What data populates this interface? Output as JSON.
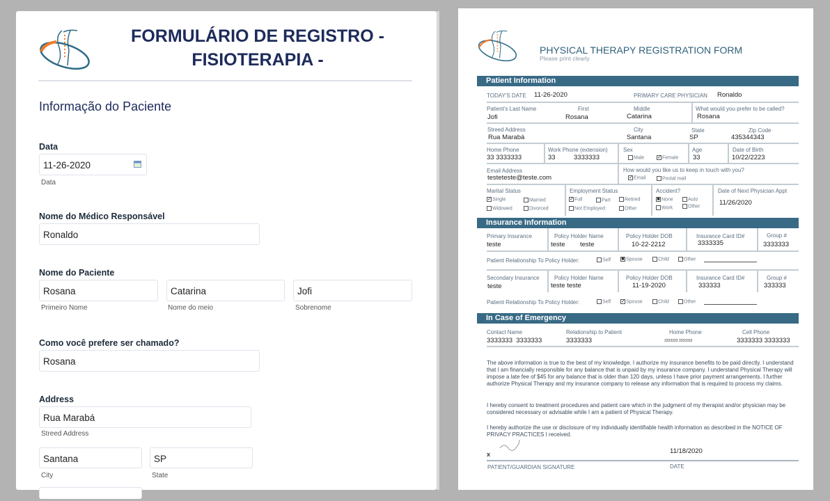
{
  "web_form": {
    "title_line1": "FORMULÁRIO DE REGISTRO -",
    "title_line2": "FISIOTERAPIA -",
    "section": "Informação do Paciente",
    "date": {
      "label": "Data",
      "value": "11-26-2020",
      "sublabel": "Data"
    },
    "physician": {
      "label": "Nome do Médico Responsável",
      "value": "Ronaldo"
    },
    "patient_name": {
      "label": "Nome do Paciente",
      "first": "Rosana",
      "first_sub": "Primeiro Nome",
      "middle": "Catarina",
      "middle_sub": "Nome do meio",
      "last": "Jofi",
      "last_sub": "Sobrenome"
    },
    "preferred": {
      "label": "Como você prefere ser chamado?",
      "value": "Rosana"
    },
    "address": {
      "label": "Address",
      "street": "Rua Marabá",
      "street_sub": "Streed Address",
      "city": "Santana",
      "city_sub": "City",
      "state": "SP",
      "state_sub": "State"
    }
  },
  "pdf": {
    "title": "PHYSICAL THERAPY REGISTRATION FORM",
    "subtitle": "Please print clearly",
    "accent": "#386a85",
    "patient": {
      "header": "Patient Information",
      "todays_date_label": "TODAY'S DATE",
      "todays_date": "11-26-2020",
      "pcp_label": "PRIMARY CARE PHYSICIAN",
      "pcp": "Ronaldo",
      "last_label": "Patient's Last Name",
      "last": "Jofi",
      "first_label": "First",
      "first": "Rosana",
      "middle_label": "Middle",
      "middle": "Catarina",
      "called_label": "What would you prefer to be called?",
      "called": "Rosana",
      "street_label": "Streed Address",
      "street": "Rua Marabá",
      "city_label": "City",
      "city": "Santana",
      "state_label": "State",
      "state": "SP",
      "zip_label": "Zip Code",
      "zip": "435344343",
      "home_label": "Home Phone",
      "home": "33 3333333",
      "work_label": "Work Phone (extension)",
      "work_ext": "33",
      "work": "3333333",
      "sex_label": "Sex",
      "male": "Male",
      "female": "Female",
      "age_label": "Age",
      "age": "33",
      "dob_label": "Date of Birth",
      "dob": "10/22/2223",
      "email_label": "Email Address",
      "email": "testeteste@teste.com",
      "contact_label": "How would you like us to keep in touch with you?",
      "contact_email": "Email",
      "contact_postal": "Postal mail",
      "marital_label": "Marital Status",
      "single": "Single",
      "married": "Married",
      "widowed": "Widowed",
      "divorced": "Divorced",
      "employment_label": "Employment Status",
      "full": "Full",
      "part": "Part",
      "retired": "Retired",
      "not_employed": "Not Employed",
      "emp_other": "Other",
      "accident_label": "Accident?",
      "none": "None",
      "auto": "Auto",
      "work_acc": "Work",
      "acc_other": "Other",
      "next_appt_label": "Date of Next Physician Appt",
      "next_appt": "11/26/2020"
    },
    "insurance": {
      "header": "Insurance Information",
      "primary_label": "Primary Insurance",
      "primary": "teste",
      "holder_label": "Policy Holder Name",
      "holder1": "teste",
      "holder2": "teste",
      "dob_label": "Policy Holder DOB",
      "dob": "10-22-2212",
      "card_label": "Insurance Card ID#",
      "card": "3333335",
      "group_label": "Group #",
      "group": "3333333",
      "rel_label": "Patient Relationship To Policy Holder:",
      "self": "Self",
      "spouse": "Spouse",
      "child": "Child",
      "other": "Other",
      "secondary_label": "Secondary Insurance",
      "secondary": "teste",
      "holder_b": "teste teste",
      "dob_b": "11-19-2020",
      "card_b": "333333",
      "group_b": "333333"
    },
    "emergency": {
      "header": "In Case of Emergency",
      "contact_label": "Contact Name",
      "contact": "3333333  3333333",
      "relationship_label": "Relationship to Patient",
      "relationship": "3333333",
      "home_label": "Home Phone",
      "home": "3333333 3333333",
      "cell_label": "Cell Phone",
      "cell": "3333333 3333333"
    },
    "para1": "The above information is true to the best of my knowledge. I authorize my insurance benefits to be paid directly. I understand that I am financially responsible for any balance that is unpaid by my insurance company. I understand Physical Therapy will impose a late fee of $45 for any balance that is older than 120 days, unless I have prior payment arrangements. I further authorize Physical Therapy and my insurance company to release any information that is required to process my claims.",
    "para2": "I hereby consent to treatment procedures and patient care which in the judgment of my therapist and/or physician may be considered necessary or advisable while I am a patient of Physical Therapy.",
    "para3": "I hereby authorize the use or disclosure of my individually identifiable health information as described in the NOTICE OF PRIVACY PRACTICES I received.",
    "sig_x": "x",
    "sig_date": "11/18/2020",
    "sig_label": "PATIENT/GUARDIAN SIGNATURE",
    "date_label": "DATE"
  }
}
